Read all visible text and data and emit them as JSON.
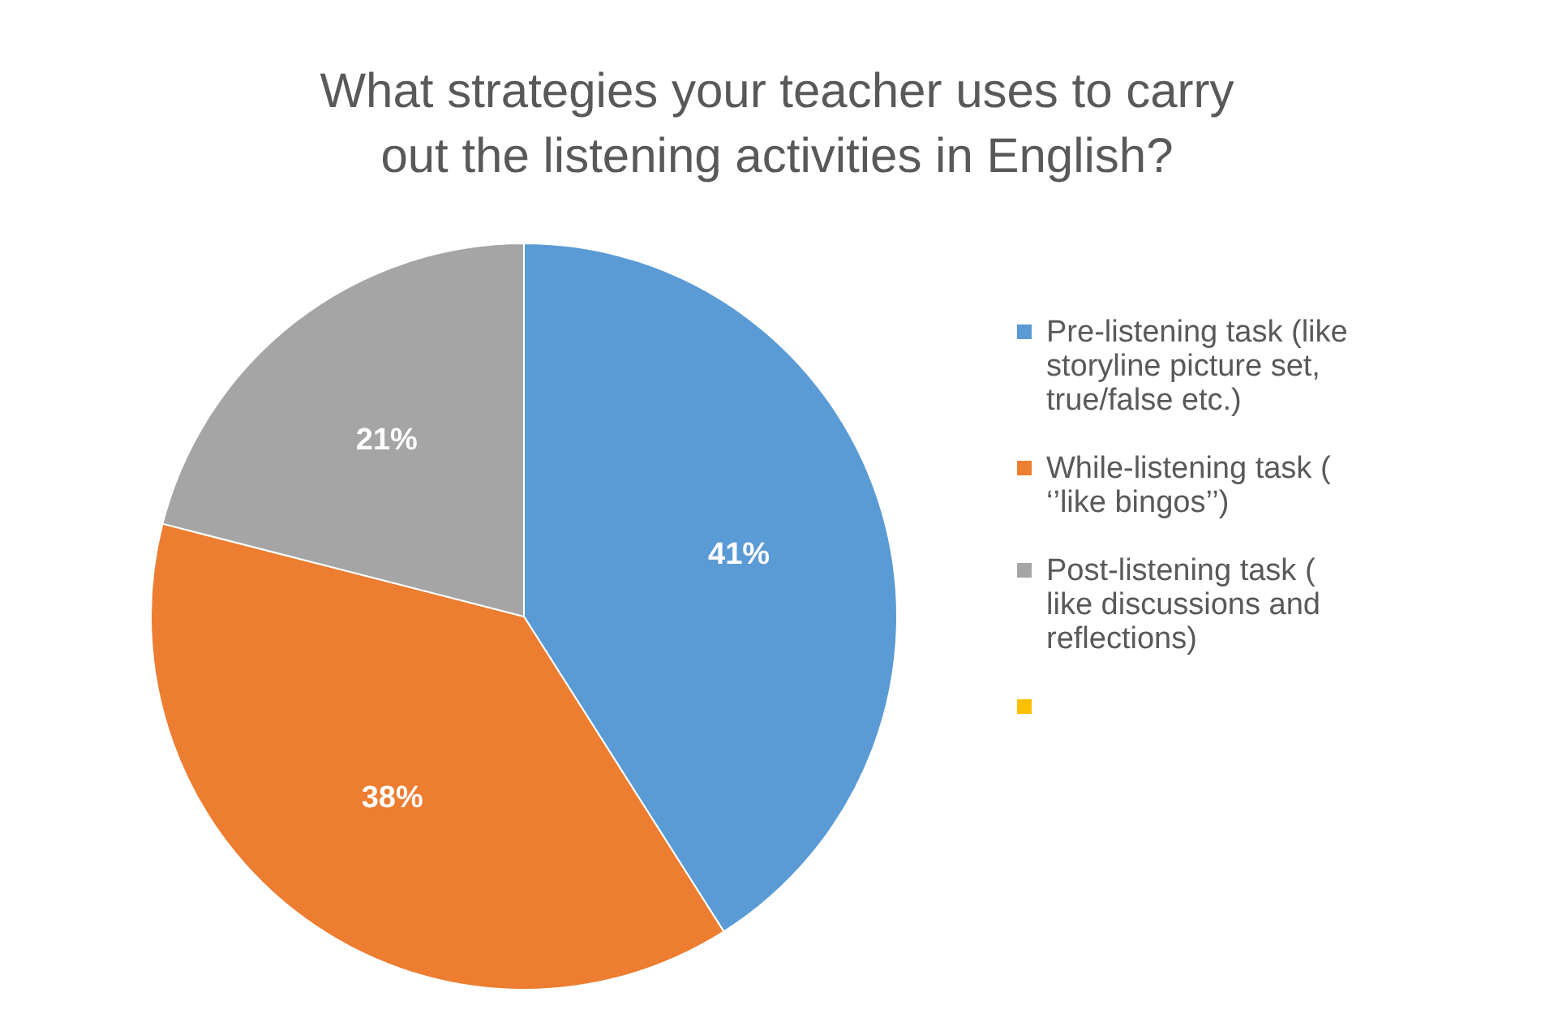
{
  "chart_data": {
    "type": "pie",
    "title": "What strategies your teacher uses to carry out the listening activities in English?",
    "categories": [
      "Pre-listening task (like storyline picture set, true/false etc.)",
      "While-listening task ( ‘’like bingos’’)",
      "Post-listening task ( like discussions and reflections)",
      null
    ],
    "values": [
      41,
      38,
      21,
      0
    ],
    "colors": [
      "#5b9bd5",
      "#ed7d31",
      "#a5a5a5",
      "#ffc000"
    ],
    "value_labels": [
      "41%",
      "38%",
      "21%",
      null
    ],
    "legend": "right"
  }
}
